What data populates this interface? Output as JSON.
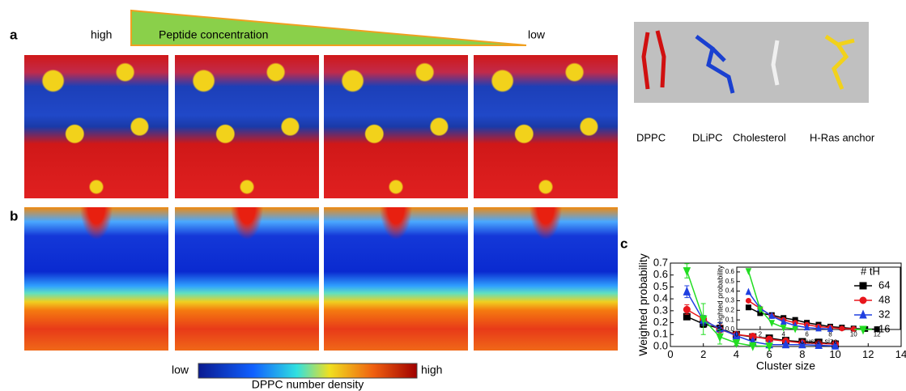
{
  "panels": {
    "a": "a",
    "b": "b",
    "c": "c"
  },
  "concentration": {
    "high": "high",
    "title": "Peptide concentration",
    "low": "low"
  },
  "molecules": [
    "DPPC",
    "DLiPC",
    "Cholesterol",
    "H-Ras anchor"
  ],
  "colorbar": {
    "low": "low",
    "high": "high",
    "title": "DPPC number density"
  },
  "chart_data": [
    {
      "type": "line",
      "xlabel": "Cluster size",
      "ylabel": "Weighted probability",
      "x": [
        1,
        2,
        3,
        4,
        5,
        6,
        7,
        8,
        9,
        10
      ],
      "xlim": [
        0,
        14
      ],
      "xticks": [
        0,
        2,
        4,
        6,
        8,
        10,
        12,
        14
      ],
      "ylim": [
        0,
        0.7
      ],
      "yticks": [
        {
          "value": 0,
          "label": "0.0"
        },
        0.1,
        0.2,
        0.3,
        0.4,
        0.5,
        0.6,
        0.7
      ],
      "series": [
        {
          "name": "64",
          "color": "#000000",
          "marker": "square",
          "values": [
            0.25,
            0.19,
            0.15,
            0.1,
            0.08,
            0.07,
            0.05,
            0.04,
            0.035,
            0.02
          ],
          "errors": [
            0.02,
            0.03,
            0.03,
            0.02,
            0.02,
            0.015,
            0.015,
            0.015,
            0.015,
            0.015
          ]
        },
        {
          "name": "48",
          "color": "#e8161c",
          "marker": "circle",
          "values": [
            0.31,
            0.23,
            0.14,
            0.1,
            0.085,
            0.06,
            0.045,
            0.03,
            0.025,
            0.02
          ],
          "errors": [
            0.04,
            0.03,
            0.04,
            0.02,
            0.02,
            0.015,
            0.015,
            0.01,
            0.01,
            0.01
          ]
        },
        {
          "name": "32",
          "color": "#2040e0",
          "marker": "triangle-up",
          "values": [
            0.46,
            0.22,
            0.15,
            0.09,
            0.04,
            0.015,
            0.015,
            0.015,
            0.01,
            0.005
          ],
          "errors": [
            0.05,
            0.04,
            0.05,
            0.02,
            0.02,
            0.01,
            0.01,
            0.01,
            0.01,
            0.005
          ]
        },
        {
          "name": "16",
          "color": "#22dd22",
          "marker": "triangle-down",
          "values": [
            0.635,
            0.23,
            0.08,
            0.03,
            0.005,
            0.002,
            null,
            null,
            null,
            null
          ],
          "errors": [
            0.06,
            0.13,
            0.06,
            0.02,
            0.005,
            0.002,
            null,
            null,
            null,
            null
          ]
        }
      ]
    },
    {
      "type": "line",
      "xlabel": "Cluster size",
      "ylabel": "Weighted probability",
      "legend_title": "# tH",
      "x": [
        1,
        2,
        3,
        4,
        5,
        6,
        7,
        8,
        9,
        10,
        11,
        12
      ],
      "xlim": [
        0,
        14
      ],
      "xticks": [
        0,
        2,
        4,
        6,
        8,
        10,
        12
      ],
      "ylim": [
        0,
        0.65
      ],
      "yticks": [
        {
          "value": 0,
          "label": "0.0"
        },
        0.1,
        0.2,
        0.3,
        0.4,
        0.5,
        0.6
      ],
      "series": [
        {
          "name": "64",
          "color": "#000000",
          "marker": "square",
          "values": [
            0.23,
            0.17,
            0.15,
            0.12,
            0.1,
            0.07,
            0.05,
            0.03,
            0.02,
            0.01,
            0.005,
            0.003
          ]
        },
        {
          "name": "48",
          "color": "#e8161c",
          "marker": "circle",
          "values": [
            0.3,
            0.22,
            0.14,
            0.1,
            0.07,
            0.05,
            0.03,
            0.02,
            0.01,
            0.005,
            null,
            null
          ]
        },
        {
          "name": "32",
          "color": "#2040e0",
          "marker": "triangle-up",
          "values": [
            0.39,
            0.22,
            0.14,
            0.08,
            0.04,
            0.02,
            0.01,
            0.005,
            null,
            null,
            null,
            null
          ]
        },
        {
          "name": "16",
          "color": "#22dd22",
          "marker": "triangle-down",
          "values": [
            0.61,
            0.21,
            0.07,
            0.02,
            0.005,
            null,
            null,
            null,
            null,
            null,
            null,
            null
          ]
        }
      ]
    }
  ]
}
